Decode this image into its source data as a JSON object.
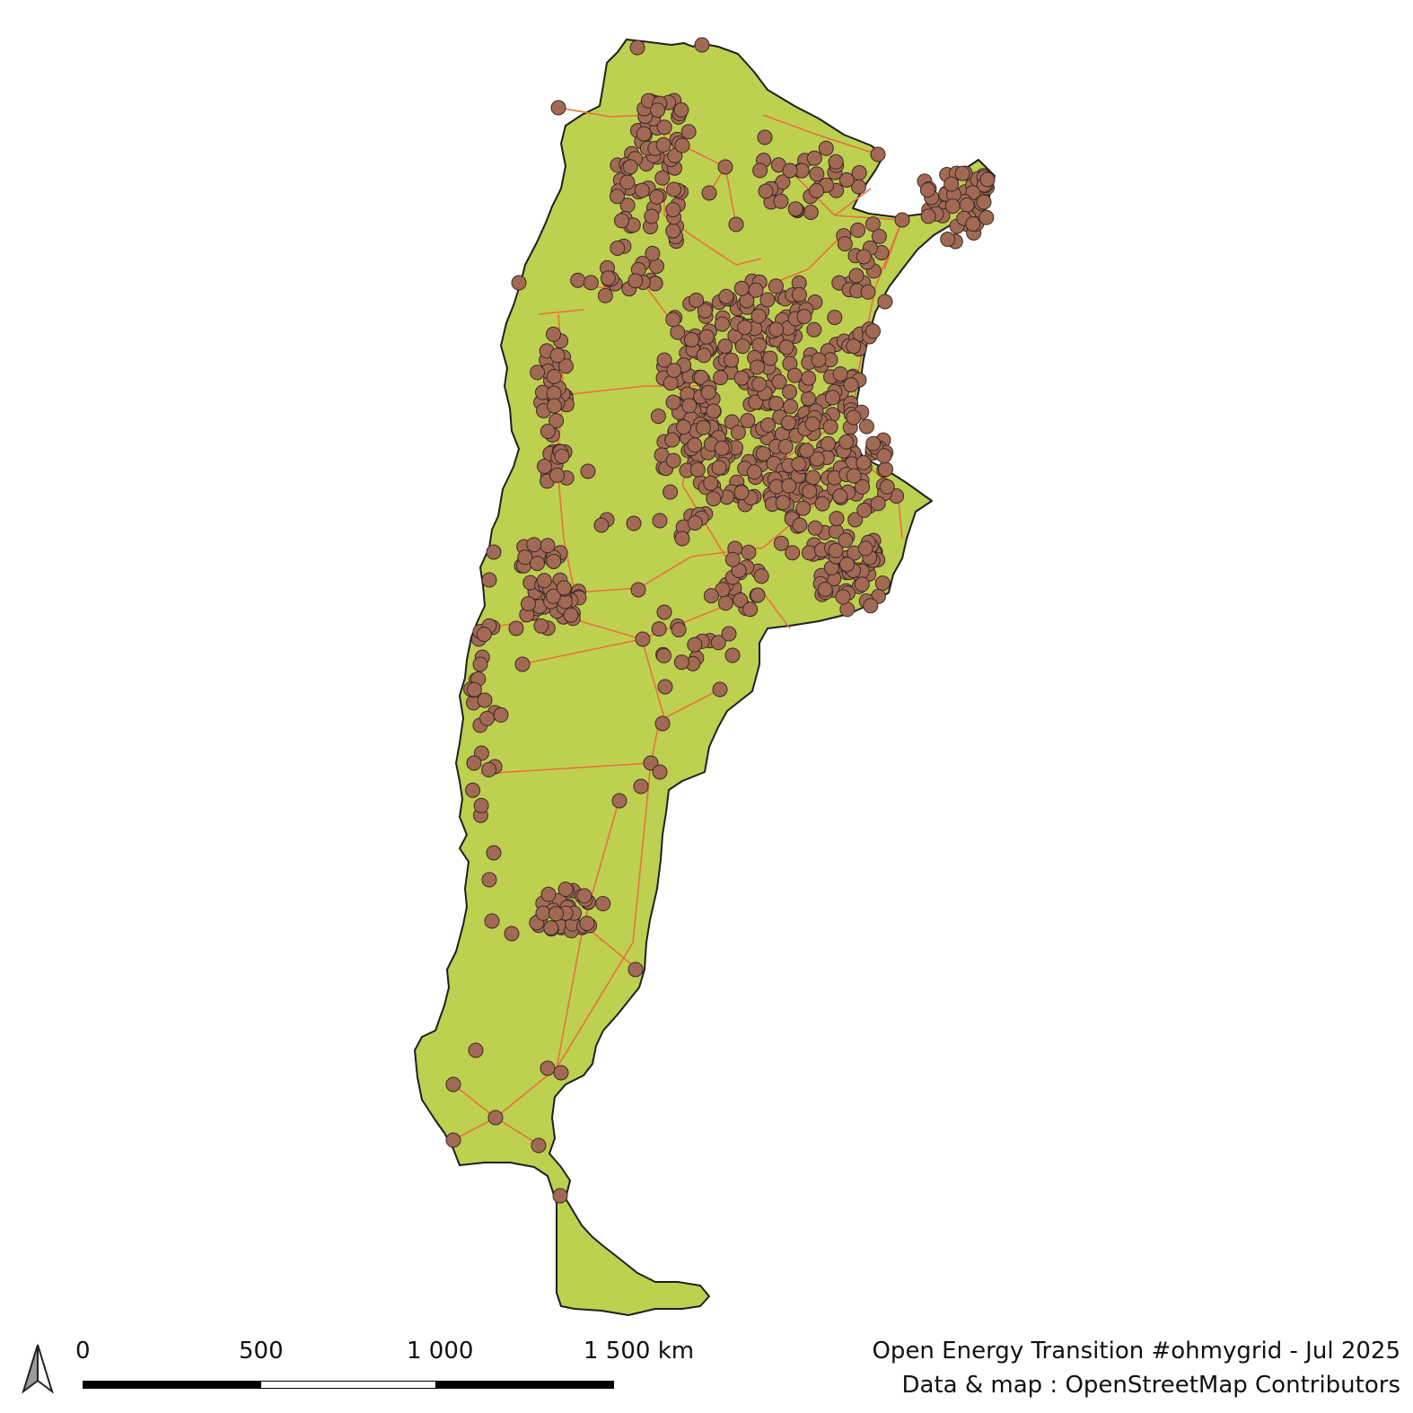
{
  "map": {
    "colors": {
      "land": "#bdd050",
      "border": "#1f1f1f",
      "power_line": "#e8703c",
      "substation": "#a26a55"
    },
    "north_arrow_icon": "north-arrow-icon"
  },
  "scale_bar": {
    "labels": [
      "0",
      "500",
      "1 000",
      "1 500 km"
    ]
  },
  "credits": {
    "line1": "Open Energy Transition #ohmygrid - Jul 2025",
    "line2": "Data & map : OpenStreetMap Contributors"
  }
}
